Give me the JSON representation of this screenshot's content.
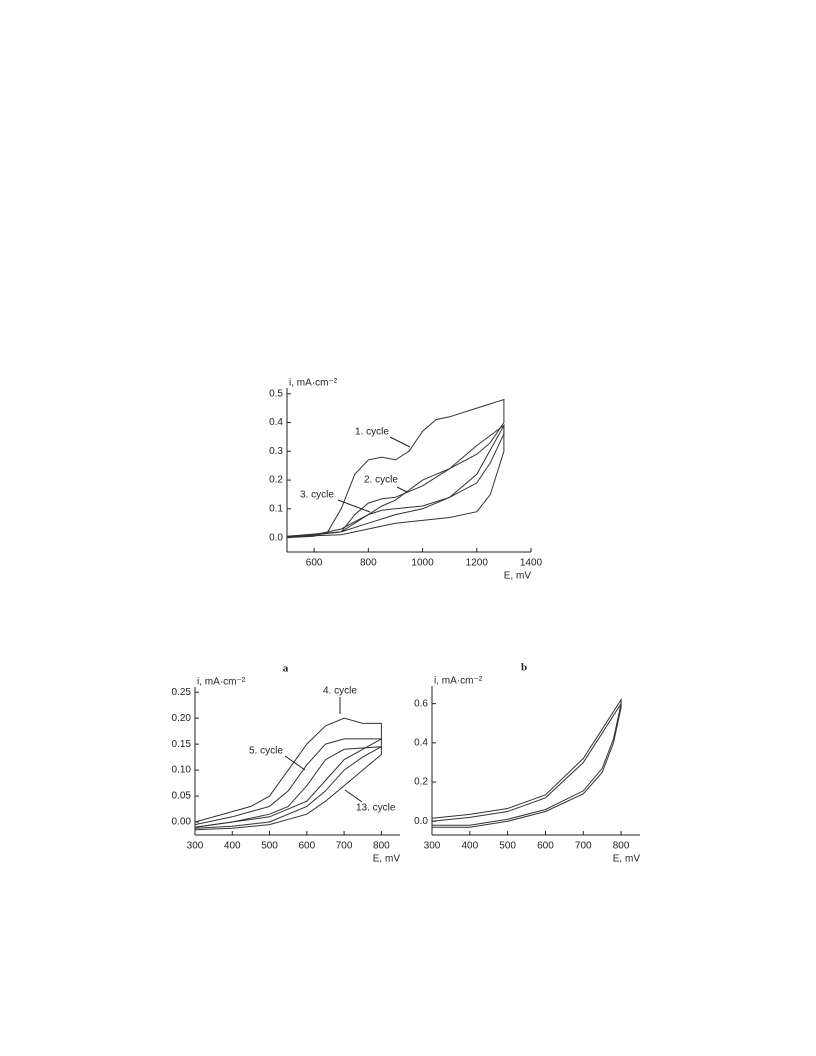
{
  "chart_data": [
    {
      "type": "line",
      "y_label": "i, mA·cm⁻²",
      "x_label": "E, mV",
      "xlim": [
        500,
        1400
      ],
      "xticks": [
        600,
        800,
        1000,
        1200,
        1400
      ],
      "ylim": [
        -0.05,
        0.52
      ],
      "yticks": [
        {
          "value": 0,
          "label": "0.0"
        },
        0.1,
        0.2,
        0.3,
        0.4,
        0.5
      ],
      "grid": false,
      "series": [
        {
          "name": "1. cycle",
          "color": "#333333",
          "x": [
            500,
            600,
            650,
            700,
            750,
            800,
            850,
            900,
            950,
            1000,
            1050,
            1100,
            1200,
            1300,
            1300,
            1250,
            1200,
            1100,
            1000,
            900,
            850,
            800,
            700,
            600,
            500
          ],
          "values": [
            0.0,
            0.005,
            0.02,
            0.1,
            0.22,
            0.27,
            0.28,
            0.27,
            0.3,
            0.37,
            0.41,
            0.42,
            0.45,
            0.48,
            0.4,
            0.33,
            0.29,
            0.24,
            0.2,
            0.13,
            0.11,
            0.08,
            0.03,
            0.01,
            0.005
          ]
        },
        {
          "name": "2. cycle",
          "color": "#333333",
          "x": [
            500,
            700,
            750,
            800,
            850,
            900,
            1000,
            1100,
            1200,
            1300,
            1300,
            1250,
            1200,
            1100,
            1000,
            900,
            800,
            700,
            500
          ],
          "values": [
            0.0,
            0.02,
            0.08,
            0.12,
            0.135,
            0.14,
            0.18,
            0.24,
            0.32,
            0.39,
            0.36,
            0.26,
            0.19,
            0.14,
            0.1,
            0.08,
            0.05,
            0.02,
            0.005
          ]
        },
        {
          "name": "3. cycle",
          "color": "#333333",
          "x": [
            500,
            700,
            800,
            850,
            900,
            1000,
            1100,
            1200,
            1300,
            1300,
            1250,
            1200,
            1100,
            1000,
            900,
            800,
            700,
            500
          ],
          "values": [
            0.0,
            0.02,
            0.08,
            0.095,
            0.1,
            0.11,
            0.14,
            0.22,
            0.39,
            0.3,
            0.15,
            0.09,
            0.07,
            0.06,
            0.05,
            0.03,
            0.01,
            0.003
          ]
        }
      ]
    },
    {
      "type": "line",
      "panel_label": "a",
      "y_label": "i, mA·cm⁻²",
      "x_label": "E, mV",
      "xlim": [
        300,
        850
      ],
      "xticks": [
        300,
        400,
        500,
        600,
        700,
        800
      ],
      "ylim": [
        -0.025,
        0.26
      ],
      "yticks": [
        {
          "value": 0,
          "label": "0.00"
        },
        0.05,
        {
          "value": 0.1,
          "label": "0.10"
        },
        0.15,
        {
          "value": 0.2,
          "label": "0.20"
        },
        0.25
      ],
      "grid": false,
      "series": [
        {
          "name": "4. cycle",
          "color": "#333333",
          "x": [
            300,
            400,
            450,
            500,
            550,
            600,
            650,
            700,
            750,
            800,
            800,
            750,
            700,
            650,
            600,
            500,
            400,
            300
          ],
          "values": [
            0.0,
            0.02,
            0.03,
            0.05,
            0.1,
            0.15,
            0.185,
            0.2,
            0.19,
            0.19,
            0.16,
            0.14,
            0.12,
            0.08,
            0.04,
            0.01,
            0.0,
            -0.01
          ]
        },
        {
          "name": "5. cycle",
          "color": "#333333",
          "x": [
            300,
            400,
            500,
            550,
            600,
            650,
            700,
            800,
            800,
            750,
            700,
            650,
            600,
            500,
            400,
            300
          ],
          "values": [
            -0.005,
            0.01,
            0.03,
            0.06,
            0.11,
            0.15,
            0.16,
            0.16,
            0.145,
            0.125,
            0.1,
            0.06,
            0.03,
            0.0,
            -0.008,
            -0.012
          ]
        },
        {
          "name": "13. cycle",
          "color": "#333333",
          "x": [
            300,
            400,
            500,
            550,
            600,
            650,
            700,
            800,
            800,
            750,
            700,
            650,
            600,
            500,
            400,
            300
          ],
          "values": [
            -0.01,
            0.0,
            0.015,
            0.03,
            0.07,
            0.12,
            0.14,
            0.145,
            0.13,
            0.1,
            0.07,
            0.04,
            0.015,
            -0.005,
            -0.012,
            -0.015
          ]
        }
      ]
    },
    {
      "type": "line",
      "panel_label": "b",
      "y_label": "i, mA·cm⁻²",
      "x_label": "E, mV",
      "xlim": [
        300,
        850
      ],
      "xticks": [
        300,
        400,
        500,
        600,
        700,
        800
      ],
      "ylim": [
        -0.07,
        0.69
      ],
      "yticks": [
        {
          "value": 0,
          "label": "0.0"
        },
        0.2,
        0.4,
        0.6
      ],
      "grid": false,
      "series": [
        {
          "color": "#333333",
          "x": [
            300,
            400,
            500,
            600,
            700,
            800,
            800,
            780,
            750,
            700,
            600,
            500,
            400,
            300
          ],
          "values": [
            0.0,
            0.02,
            0.05,
            0.12,
            0.3,
            0.6,
            0.58,
            0.4,
            0.25,
            0.14,
            0.05,
            0.0,
            -0.03,
            -0.03
          ]
        },
        {
          "color": "#333333",
          "x": [
            300,
            400,
            500,
            600,
            700,
            800,
            800,
            780,
            750,
            700,
            600,
            500,
            400,
            300
          ],
          "values": [
            0.015,
            0.035,
            0.065,
            0.135,
            0.32,
            0.62,
            0.6,
            0.42,
            0.27,
            0.155,
            0.06,
            0.01,
            -0.02,
            -0.02
          ]
        }
      ]
    }
  ]
}
